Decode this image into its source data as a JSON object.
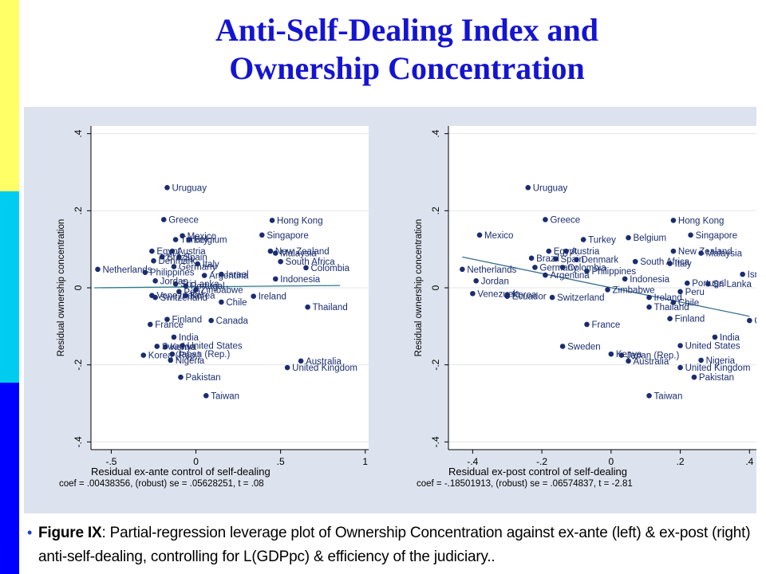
{
  "colors": {
    "title": "#1414d2",
    "stripe_yellow": "#ffff66",
    "stripe_cyan": "#00ccf0",
    "stripe_blue": "#0000ff",
    "panel_bg": "#dde3ee",
    "plot_bg": "#ffffff",
    "marker": "#1a2d6e",
    "fit_line_left": "#2e7c8c",
    "fit_line_right": "#3a6f8e"
  },
  "slide": {
    "title_line1": "Anti-Self-Dealing Index and",
    "title_line2": "Ownership Concentration"
  },
  "caption": {
    "bullet": "•",
    "lead": "Figure IX",
    "text": ":  Partial-regression leverage plot of Ownership Concentration against ex-ante (left) & ex-post (right) anti-self-dealing, controlling for L(GDPpc) & efficiency of the judiciary.."
  },
  "chart_data": [
    {
      "type": "scatter",
      "xlabel": "Residual ex-ante control of self-dealing",
      "ylabel": "Residual ownership concentration",
      "xlim": [
        -0.62,
        1.02
      ],
      "ylim": [
        -0.42,
        0.42
      ],
      "xticks": [
        -0.5,
        0,
        0.5,
        1
      ],
      "xtick_labels": [
        "-.5",
        "0",
        ".5",
        "1"
      ],
      "yticks": [
        -0.4,
        -0.2,
        0,
        0.2,
        0.4
      ],
      "ytick_labels": [
        "-.4",
        "-.2",
        "0",
        ".2",
        ".4"
      ],
      "grid": true,
      "fit_line": {
        "x": [
          -0.6,
          0.85
        ],
        "y": [
          0.0,
          0.006
        ]
      },
      "footnote": "coef = .00438356, (robust) se = .05628251, t = .08",
      "points": [
        {
          "label": "Uruguay",
          "x": -0.17,
          "y": 0.26
        },
        {
          "label": "Greece",
          "x": -0.19,
          "y": 0.177
        },
        {
          "label": "Hong Kong",
          "x": 0.45,
          "y": 0.175
        },
        {
          "label": "Mexico",
          "x": -0.08,
          "y": 0.135
        },
        {
          "label": "Belgium",
          "x": -0.04,
          "y": 0.125
        },
        {
          "label": "Singapore",
          "x": 0.39,
          "y": 0.137
        },
        {
          "label": "Turkey",
          "x": -0.12,
          "y": 0.125
        },
        {
          "label": "Austria",
          "x": -0.14,
          "y": 0.095
        },
        {
          "label": "Egypt",
          "x": -0.26,
          "y": 0.095
        },
        {
          "label": "Spain",
          "x": -0.1,
          "y": 0.08
        },
        {
          "label": "Brazil",
          "x": -0.2,
          "y": 0.08
        },
        {
          "label": "Denmark",
          "x": -0.25,
          "y": 0.07
        },
        {
          "label": "Germany",
          "x": -0.13,
          "y": 0.055
        },
        {
          "label": "Italy",
          "x": 0.01,
          "y": 0.062
        },
        {
          "label": "New Zealand",
          "x": 0.44,
          "y": 0.095
        },
        {
          "label": "Malaysia",
          "x": 0.47,
          "y": 0.09
        },
        {
          "label": "South Africa",
          "x": 0.5,
          "y": 0.068
        },
        {
          "label": "Colombia",
          "x": 0.65,
          "y": 0.052
        },
        {
          "label": "Netherlands",
          "x": -0.58,
          "y": 0.048
        },
        {
          "label": "Philippines",
          "x": -0.3,
          "y": 0.04
        },
        {
          "label": "Argentina",
          "x": 0.05,
          "y": 0.032
        },
        {
          "label": "Israel",
          "x": 0.15,
          "y": 0.035
        },
        {
          "label": "Indonesia",
          "x": 0.47,
          "y": 0.023
        },
        {
          "label": "Jordan",
          "x": -0.24,
          "y": 0.018
        },
        {
          "label": "Sri Lanka",
          "x": -0.12,
          "y": 0.01
        },
        {
          "label": "Portugal",
          "x": -0.06,
          "y": 0.005
        },
        {
          "label": "Peru",
          "x": -0.1,
          "y": -0.01
        },
        {
          "label": "Zimbabwe",
          "x": 0.0,
          "y": -0.005
        },
        {
          "label": "Venezuela",
          "x": -0.26,
          "y": -0.02
        },
        {
          "label": "Korea",
          "x": -0.06,
          "y": -0.02
        },
        {
          "label": "Switzerland",
          "x": -0.24,
          "y": -0.025
        },
        {
          "label": "Chile",
          "x": 0.15,
          "y": -0.037
        },
        {
          "label": "Ireland",
          "x": 0.34,
          "y": -0.022
        },
        {
          "label": "Thailand",
          "x": 0.66,
          "y": -0.05
        },
        {
          "label": "Finland",
          "x": -0.17,
          "y": -0.082
        },
        {
          "label": "Canada",
          "x": 0.09,
          "y": -0.085
        },
        {
          "label": "France",
          "x": -0.27,
          "y": -0.095
        },
        {
          "label": "India",
          "x": -0.13,
          "y": -0.128
        },
        {
          "label": "United States",
          "x": -0.08,
          "y": -0.15
        },
        {
          "label": "Sweden",
          "x": -0.23,
          "y": -0.152
        },
        {
          "label": "Kenya",
          "x": -0.18,
          "y": -0.153
        },
        {
          "label": "Japan (Rep.)",
          "x": -0.14,
          "y": -0.172
        },
        {
          "label": "Korea (Rep.)",
          "x": -0.31,
          "y": -0.175
        },
        {
          "label": "Nigeria",
          "x": -0.15,
          "y": -0.188
        },
        {
          "label": "Australia",
          "x": 0.62,
          "y": -0.19
        },
        {
          "label": "United Kingdom",
          "x": 0.54,
          "y": -0.207
        },
        {
          "label": "Pakistan",
          "x": -0.09,
          "y": -0.232
        },
        {
          "label": "Taiwan",
          "x": 0.06,
          "y": -0.28
        }
      ]
    },
    {
      "type": "scatter",
      "xlabel": "Residual ex-post control of self-dealing",
      "ylabel": "Residual ownership concentration",
      "xlim": [
        -0.47,
        0.42
      ],
      "ylim": [
        -0.42,
        0.42
      ],
      "xticks": [
        -0.4,
        -0.2,
        0,
        0.2,
        0.4
      ],
      "xtick_labels": [
        "-.4",
        "-.2",
        "0",
        ".2",
        ".4"
      ],
      "yticks": [
        -0.4,
        -0.2,
        0,
        0.2,
        0.4
      ],
      "ytick_labels": [
        "-.4",
        "-.2",
        "0",
        ".2",
        ".4"
      ],
      "grid": true,
      "fit_line": {
        "x": [
          -0.43,
          0.4
        ],
        "y": [
          0.08,
          -0.074
        ]
      },
      "footnote": "coef = -.18501913, (robust) se = .06574837, t = -2.81",
      "points": [
        {
          "label": "Uruguay",
          "x": -0.24,
          "y": 0.26
        },
        {
          "label": "Greece",
          "x": -0.19,
          "y": 0.177
        },
        {
          "label": "Hong Kong",
          "x": 0.18,
          "y": 0.175
        },
        {
          "label": "Mexico",
          "x": -0.38,
          "y": 0.137
        },
        {
          "label": "Singapore",
          "x": 0.23,
          "y": 0.137
        },
        {
          "label": "Belgium",
          "x": 0.05,
          "y": 0.13
        },
        {
          "label": "Turkey",
          "x": -0.08,
          "y": 0.125
        },
        {
          "label": "Egypt",
          "x": -0.18,
          "y": 0.095
        },
        {
          "label": "Austria",
          "x": -0.13,
          "y": 0.095
        },
        {
          "label": "New Zealand",
          "x": 0.18,
          "y": 0.095
        },
        {
          "label": "Malaysia",
          "x": 0.26,
          "y": 0.09
        },
        {
          "label": "Brazil",
          "x": -0.23,
          "y": 0.077
        },
        {
          "label": "Spain",
          "x": -0.16,
          "y": 0.075
        },
        {
          "label": "Denmark",
          "x": -0.1,
          "y": 0.073
        },
        {
          "label": "South Africa",
          "x": 0.07,
          "y": 0.068
        },
        {
          "label": "Italy",
          "x": 0.17,
          "y": 0.063
        },
        {
          "label": "Germany",
          "x": -0.22,
          "y": 0.053
        },
        {
          "label": "Colombia",
          "x": -0.14,
          "y": 0.053
        },
        {
          "label": "Philippines",
          "x": -0.07,
          "y": 0.043
        },
        {
          "label": "Netherlands",
          "x": -0.43,
          "y": 0.048
        },
        {
          "label": "Argentina",
          "x": -0.19,
          "y": 0.033
        },
        {
          "label": "Indonesia",
          "x": 0.04,
          "y": 0.023
        },
        {
          "label": "Israel",
          "x": 0.38,
          "y": 0.035
        },
        {
          "label": "Portugal",
          "x": 0.22,
          "y": 0.012
        },
        {
          "label": "Sri Lanka",
          "x": 0.28,
          "y": 0.01
        },
        {
          "label": "Jordan",
          "x": -0.39,
          "y": 0.018
        },
        {
          "label": "Peru",
          "x": 0.2,
          "y": -0.01
        },
        {
          "label": "Zimbabwe",
          "x": -0.01,
          "y": -0.005
        },
        {
          "label": "Venezuela",
          "x": -0.4,
          "y": -0.015
        },
        {
          "label": "Korea",
          "x": -0.3,
          "y": -0.018
        },
        {
          "label": "Ecuador",
          "x": -0.3,
          "y": -0.022
        },
        {
          "label": "Switzerland",
          "x": -0.17,
          "y": -0.025
        },
        {
          "label": "Ireland",
          "x": 0.11,
          "y": -0.025
        },
        {
          "label": "Chile",
          "x": 0.18,
          "y": -0.038
        },
        {
          "label": "Thailand",
          "x": 0.11,
          "y": -0.05
        },
        {
          "label": "Finland",
          "x": 0.17,
          "y": -0.08
        },
        {
          "label": "Canada",
          "x": 0.4,
          "y": -0.085
        },
        {
          "label": "France",
          "x": -0.07,
          "y": -0.095
        },
        {
          "label": "India",
          "x": 0.3,
          "y": -0.128
        },
        {
          "label": "United States",
          "x": 0.2,
          "y": -0.15
        },
        {
          "label": "Sweden",
          "x": -0.14,
          "y": -0.152
        },
        {
          "label": "Kenya",
          "x": 0.0,
          "y": -0.172
        },
        {
          "label": "Japan (Rep.)",
          "x": 0.03,
          "y": -0.175
        },
        {
          "label": "Nigeria",
          "x": 0.26,
          "y": -0.188
        },
        {
          "label": "Australia",
          "x": 0.05,
          "y": -0.19
        },
        {
          "label": "United Kingdom",
          "x": 0.2,
          "y": -0.207
        },
        {
          "label": "Pakistan",
          "x": 0.24,
          "y": -0.232
        },
        {
          "label": "Taiwan",
          "x": 0.11,
          "y": -0.28
        }
      ]
    }
  ]
}
